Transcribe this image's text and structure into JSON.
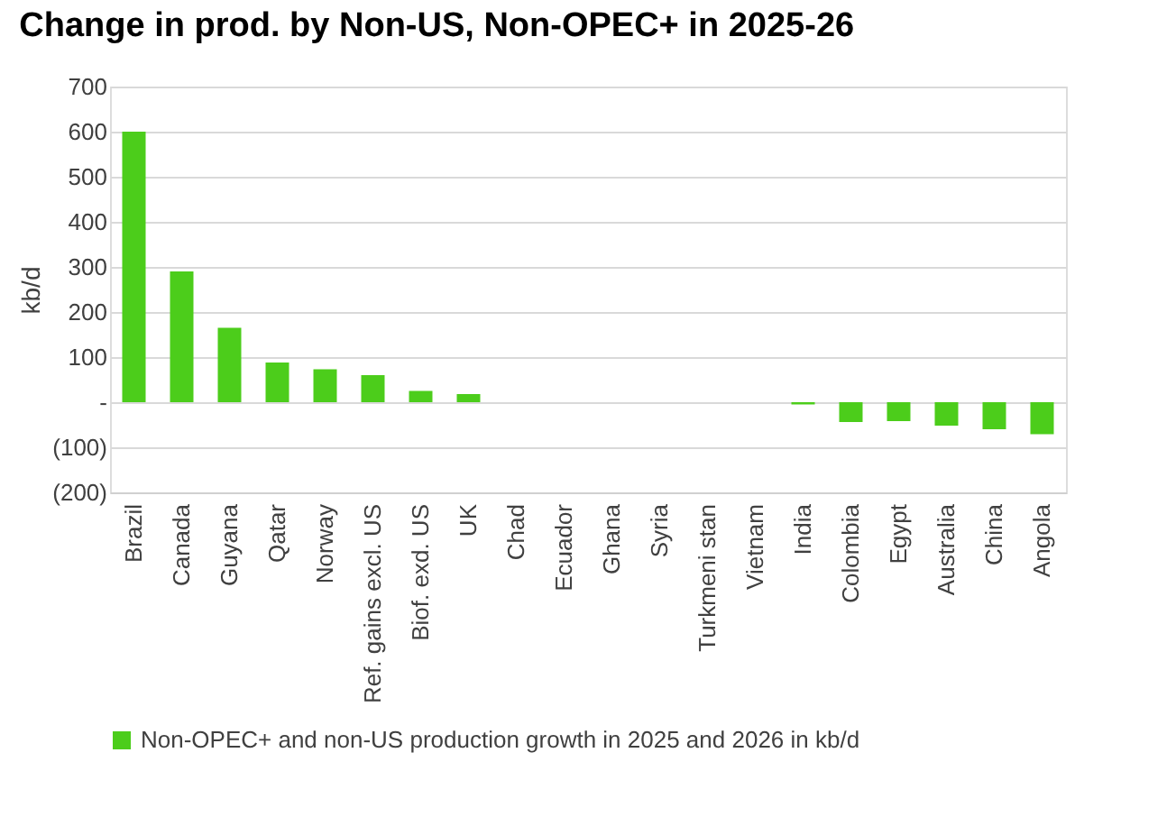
{
  "chart_data": {
    "type": "bar",
    "title": "Change in prod. by Non-US, Non-OPEC+ in 2025-26",
    "ylabel": "kb/d",
    "categories": [
      "Brazil",
      "Canada",
      "Guyana",
      "Qatar",
      "Norway",
      "Ref. gains excl. US",
      "Biof. exd. US",
      "UK",
      "Chad",
      "Ecuador",
      "Ghana",
      "Syria",
      "Turkmeni stan",
      "Vietnam",
      "India",
      "Colombia",
      "Egypt",
      "Australia",
      "China",
      "Angola"
    ],
    "series": [
      {
        "name": "Non-OPEC+ and non-US production growth in 2025 and 2026 in kb/d",
        "color": "#4ccd1b",
        "values": [
          600,
          290,
          165,
          88,
          73,
          60,
          25,
          18,
          0,
          0,
          0,
          0,
          0,
          0,
          -5,
          -44,
          -42,
          -52,
          -60,
          -71
        ]
      }
    ],
    "ylim": [
      -200,
      700
    ],
    "yticks": [
      {
        "value": -200,
        "label": "(200)"
      },
      {
        "value": -100,
        "label": "(100)"
      },
      {
        "value": 0,
        "label": "-"
      },
      100,
      200,
      300,
      400,
      500,
      600,
      700
    ],
    "grid": "y",
    "legend": "bottom"
  }
}
